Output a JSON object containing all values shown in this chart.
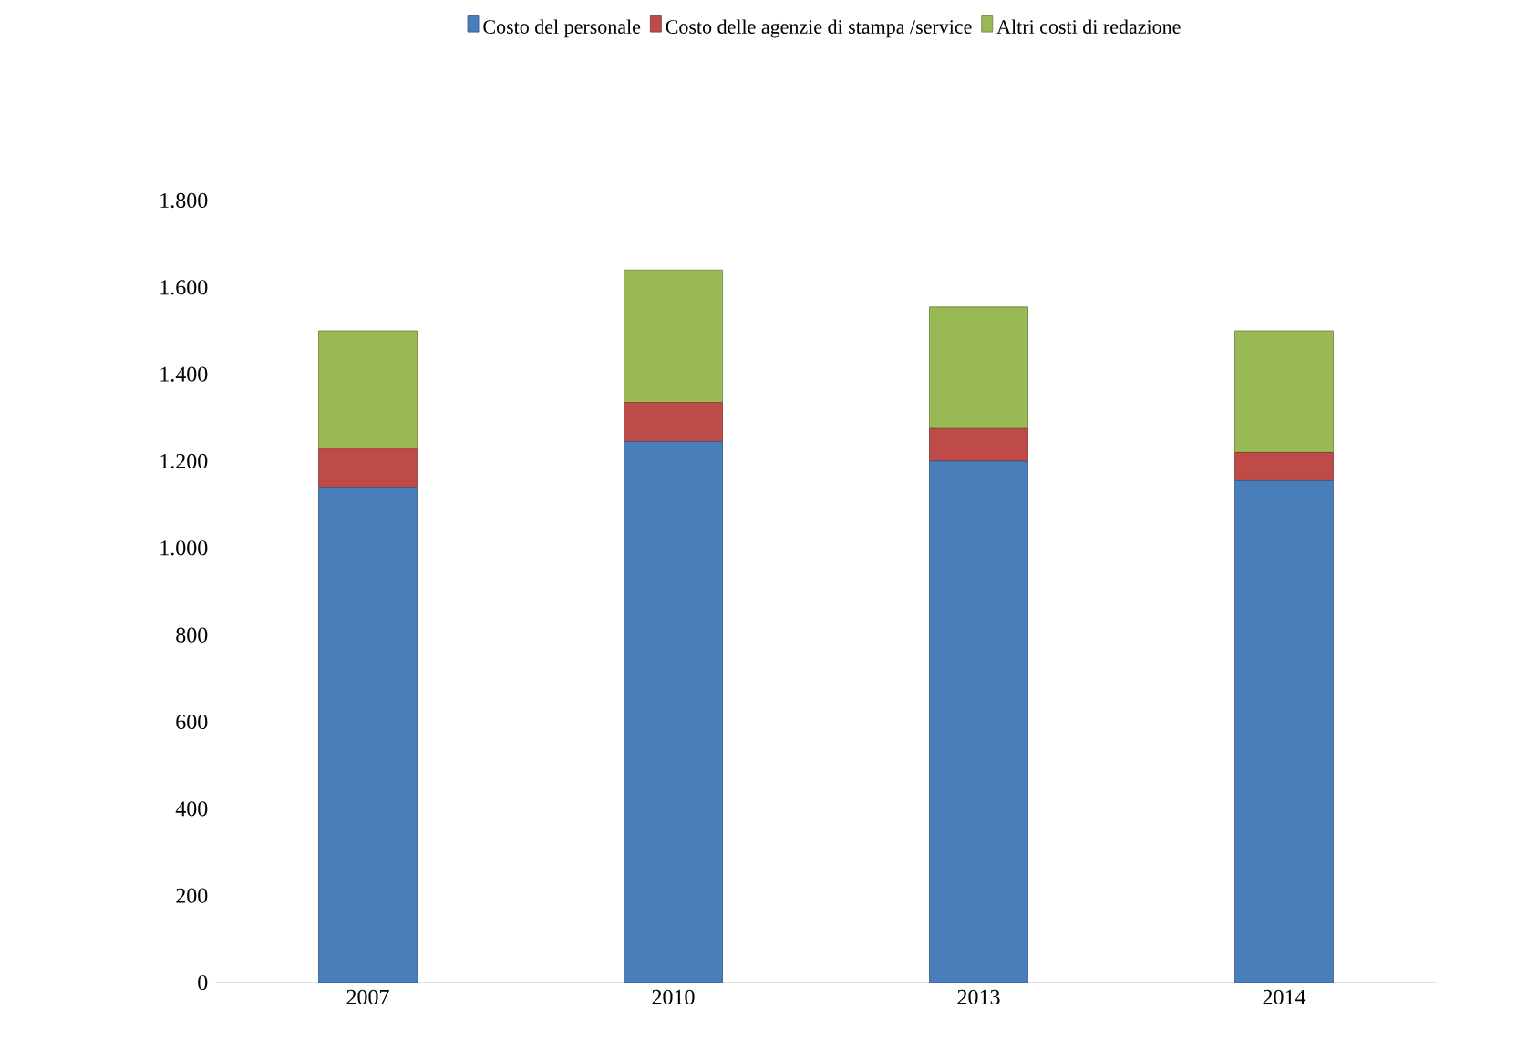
{
  "chart_data": {
    "type": "bar",
    "stacked": true,
    "categories": [
      "2007",
      "2010",
      "2013",
      "2014"
    ],
    "series": [
      {
        "name": "Costo del personale",
        "color": "#4a7ebb",
        "values": [
          1140,
          1245,
          1200,
          1155
        ]
      },
      {
        "name": "Costo delle agenzie di stampa /service",
        "color": "#be4b48",
        "values": [
          90,
          90,
          75,
          65
        ]
      },
      {
        "name": "Altri costi di redazione",
        "color": "#98b954",
        "values": [
          270,
          305,
          280,
          280
        ]
      }
    ],
    "ylim": [
      0,
      1800
    ],
    "yticks": [
      0,
      200,
      400,
      600,
      800,
      {
        "value": 1000,
        "label": "1.000"
      },
      {
        "value": 1200,
        "label": "1.200"
      },
      {
        "value": 1400,
        "label": "1.400"
      },
      {
        "value": 1600,
        "label": "1.600"
      },
      {
        "value": 1800,
        "label": "1.800"
      }
    ],
    "grid": false,
    "legend": "top"
  }
}
